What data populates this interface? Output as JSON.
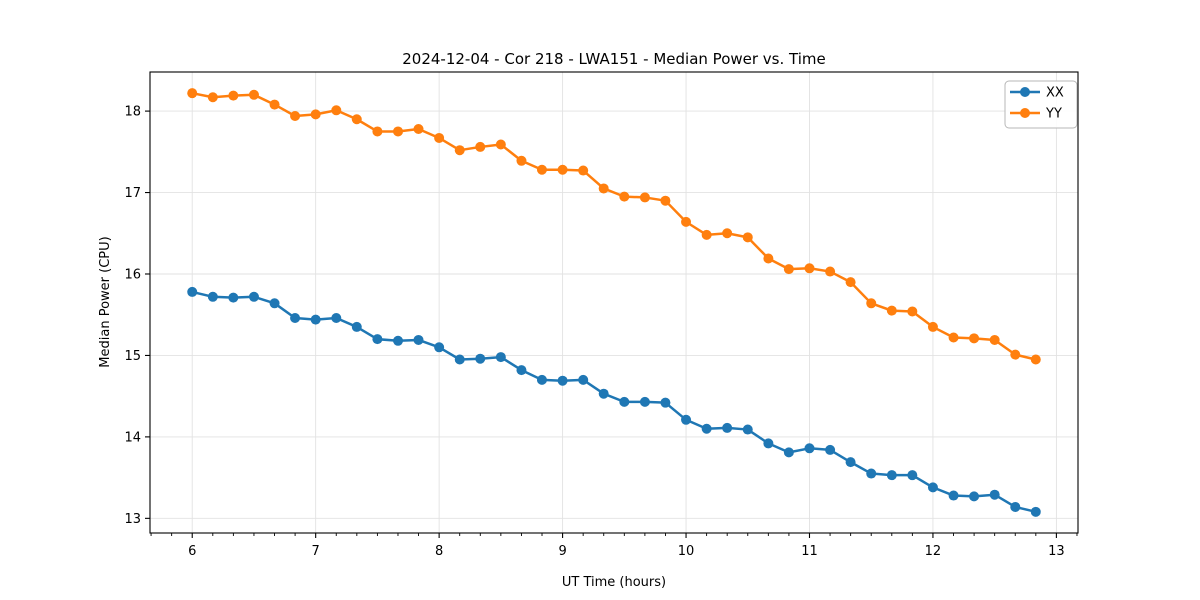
{
  "chart_data": {
    "type": "line",
    "title": "2024-12-04 - Cor 218 - LWA151 - Median Power vs. Time",
    "xlabel": "UT Time (hours)",
    "ylabel": "Median Power (CPU)",
    "xlim": [
      5.658,
      13.175
    ],
    "ylim": [
      12.82,
      18.48
    ],
    "xticks": [
      6,
      7,
      8,
      9,
      10,
      11,
      12,
      13
    ],
    "yticks": [
      13,
      14,
      15,
      16,
      17,
      18
    ],
    "x_minor_step": 0.166667,
    "grid": "major",
    "grid_color": "#e2e2e2",
    "legend_position": "upper right",
    "x": [
      6.0,
      6.167,
      6.333,
      6.5,
      6.667,
      6.833,
      7.0,
      7.167,
      7.333,
      7.5,
      7.667,
      7.833,
      8.0,
      8.167,
      8.333,
      8.5,
      8.667,
      8.833,
      9.0,
      9.167,
      9.333,
      9.5,
      9.667,
      9.833,
      10.0,
      10.167,
      10.333,
      10.5,
      10.667,
      10.833,
      11.0,
      11.167,
      11.333,
      11.5,
      11.667,
      11.833,
      12.0,
      12.167,
      12.333,
      12.5,
      12.667,
      12.833
    ],
    "series": [
      {
        "name": "XX",
        "color": "#1f77b4",
        "values": [
          15.78,
          15.72,
          15.71,
          15.72,
          15.64,
          15.46,
          15.44,
          15.46,
          15.35,
          15.2,
          15.18,
          15.19,
          15.1,
          14.95,
          14.96,
          14.98,
          14.82,
          14.7,
          14.69,
          14.7,
          14.53,
          14.43,
          14.43,
          14.42,
          14.21,
          14.1,
          14.11,
          14.09,
          13.92,
          13.81,
          13.86,
          13.84,
          13.69,
          13.55,
          13.53,
          13.53,
          13.38,
          13.28,
          13.27,
          13.29,
          13.14,
          13.08
        ]
      },
      {
        "name": "YY",
        "color": "#ff7f0e",
        "values": [
          18.22,
          18.17,
          18.19,
          18.2,
          18.08,
          17.94,
          17.96,
          18.01,
          17.9,
          17.75,
          17.75,
          17.78,
          17.67,
          17.52,
          17.56,
          17.59,
          17.39,
          17.28,
          17.28,
          17.27,
          17.05,
          16.95,
          16.94,
          16.9,
          16.64,
          16.48,
          16.5,
          16.45,
          16.19,
          16.06,
          16.07,
          16.03,
          15.9,
          15.64,
          15.55,
          15.54,
          15.35,
          15.22,
          15.21,
          15.19,
          15.01,
          14.95
        ]
      }
    ]
  }
}
